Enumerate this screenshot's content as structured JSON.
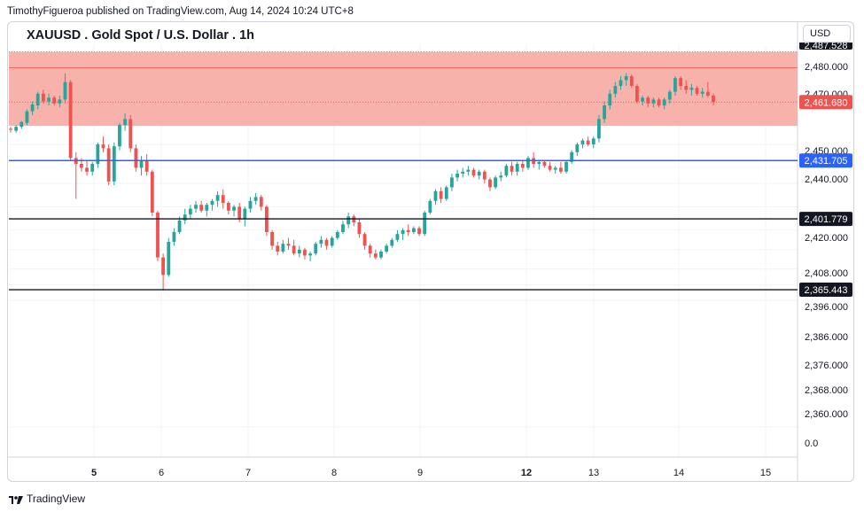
{
  "header": {
    "attribution": "TimothyFigueroa published on TradingView.com, Aug 14, 2024 10:24 UTC+8",
    "symbol_title": "XAUUSD . Gold Spot / U.S. Dollar . 1h",
    "currency": "USD"
  },
  "footer": {
    "brand": "TradingView"
  },
  "colors": {
    "up": "#26a69a",
    "down": "#ef5350",
    "zone_fill": "#f8b2ac",
    "zone_line": "#f06a61",
    "support_blue": "#2962ff",
    "support_black": "#131722",
    "grid": "#f0f3fa"
  },
  "chart_data": {
    "type": "candlestick",
    "title": "XAUUSD . Gold Spot / U.S. Dollar . 1h",
    "x_tick_labels": [
      "5",
      "6",
      "7",
      "8",
      "9",
      "12",
      "13",
      "14",
      "15"
    ],
    "bold_x_ticks": [
      "5",
      "12"
    ],
    "y_tick_labels": [
      "2,480.000",
      "2,470.000",
      "2,450.000",
      "2,440.000",
      "2,420.000",
      "2,408.000",
      "2,396.000",
      "2,386.000",
      "2,376.000",
      "2,368.000",
      "2,360.000",
      "0.0"
    ],
    "y_tick_values": [
      2480,
      2470,
      2450,
      2440,
      2420,
      2408,
      2396,
      2386,
      2376,
      2368,
      2360
    ],
    "grid": true,
    "resistance_zone": {
      "low": 2449.5,
      "high": 2487.5,
      "mid_line": 2479.3
    },
    "horizontal_levels": [
      {
        "label": "2,431.705",
        "value": 2431.705,
        "color": "blue"
      },
      {
        "label": "2,401.779",
        "value": 2401.779,
        "color": "black"
      },
      {
        "label": "2,365.443",
        "value": 2365.443,
        "color": "black"
      }
    ],
    "last_price": {
      "label": "2,461.680",
      "value": 2461.68
    },
    "top_price_label": "2,487.528",
    "candles": [
      [
        2448.0,
        2449.0,
        2446.0,
        2447.5
      ],
      [
        2447.0,
        2450.0,
        2446.0,
        2449.0
      ],
      [
        2449.0,
        2452.0,
        2448.0,
        2451.5
      ],
      [
        2451.0,
        2458.0,
        2450.0,
        2457.0
      ],
      [
        2457.0,
        2462.0,
        2455.0,
        2460.5
      ],
      [
        2460.0,
        2467.0,
        2458.0,
        2466.0
      ],
      [
        2466.0,
        2468.0,
        2461.0,
        2462.0
      ],
      [
        2462.0,
        2466.0,
        2460.0,
        2464.0
      ],
      [
        2464.0,
        2465.0,
        2460.0,
        2461.0
      ],
      [
        2461.0,
        2465.0,
        2459.0,
        2463.0
      ],
      [
        2463.0,
        2476.5,
        2461.0,
        2472.0
      ],
      [
        2472.0,
        2473.0,
        2432.0,
        2433.0
      ],
      [
        2433.0,
        2436.0,
        2412.0,
        2430.0
      ],
      [
        2430.0,
        2433.0,
        2426.0,
        2428.0
      ],
      [
        2428.0,
        2432.0,
        2424.0,
        2426.0
      ],
      [
        2426.0,
        2431.0,
        2424.0,
        2430.0
      ],
      [
        2430.0,
        2441.0,
        2428.0,
        2440.0
      ],
      [
        2440.0,
        2444.0,
        2436.0,
        2438.0
      ],
      [
        2438.0,
        2440.0,
        2419.0,
        2421.0
      ],
      [
        2421.0,
        2441.0,
        2419.0,
        2439.0
      ],
      [
        2439.0,
        2451.0,
        2437.0,
        2450.0
      ],
      [
        2450.0,
        2456.0,
        2447.0,
        2453.0
      ],
      [
        2453.0,
        2455.0,
        2436.0,
        2438.0
      ],
      [
        2438.0,
        2440.0,
        2426.0,
        2428.0
      ],
      [
        2428.0,
        2434.0,
        2424.0,
        2432.0
      ],
      [
        2432.0,
        2435.0,
        2424.0,
        2426.0
      ],
      [
        2426.0,
        2427.0,
        2403.0,
        2405.0
      ],
      [
        2405.0,
        2406.0,
        2380.0,
        2382.0
      ],
      [
        2382.0,
        2384.0,
        2365.0,
        2373.0
      ],
      [
        2373.0,
        2392.0,
        2372.0,
        2390.0
      ],
      [
        2390.0,
        2397.0,
        2388.0,
        2395.0
      ],
      [
        2395.0,
        2403.0,
        2394.0,
        2401.0
      ],
      [
        2401.0,
        2407.0,
        2399.0,
        2404.0
      ],
      [
        2404.0,
        2409.0,
        2402.0,
        2407.0
      ],
      [
        2407.0,
        2411.0,
        2405.0,
        2409.0
      ],
      [
        2409.0,
        2411.0,
        2405.0,
        2406.0
      ],
      [
        2406.0,
        2410.0,
        2403.0,
        2409.0
      ],
      [
        2409.0,
        2412.0,
        2406.0,
        2411.0
      ],
      [
        2411.0,
        2416.0,
        2408.0,
        2414.0
      ],
      [
        2414.0,
        2417.0,
        2407.0,
        2410.0
      ],
      [
        2410.0,
        2411.0,
        2404.0,
        2406.0
      ],
      [
        2406.0,
        2409.0,
        2403.0,
        2408.0
      ],
      [
        2408.0,
        2410.0,
        2400.0,
        2402.0
      ],
      [
        2402.0,
        2408.0,
        2398.0,
        2407.0
      ],
      [
        2407.0,
        2413.0,
        2405.0,
        2411.0
      ],
      [
        2411.0,
        2415.0,
        2409.0,
        2413.0
      ],
      [
        2413.0,
        2414.0,
        2406.0,
        2408.0
      ],
      [
        2408.0,
        2409.0,
        2393.0,
        2395.0
      ],
      [
        2395.0,
        2396.0,
        2386.0,
        2388.0
      ],
      [
        2388.0,
        2390.0,
        2383.0,
        2385.0
      ],
      [
        2385.0,
        2391.0,
        2384.0,
        2389.0
      ],
      [
        2389.0,
        2392.0,
        2386.0,
        2388.0
      ],
      [
        2388.0,
        2391.0,
        2383.0,
        2384.0
      ],
      [
        2384.0,
        2388.0,
        2382.0,
        2386.0
      ],
      [
        2386.0,
        2387.0,
        2381.0,
        2383.0
      ],
      [
        2383.0,
        2385.0,
        2380.0,
        2384.0
      ],
      [
        2384.0,
        2390.0,
        2383.0,
        2389.0
      ],
      [
        2389.0,
        2393.0,
        2387.0,
        2391.0
      ],
      [
        2391.0,
        2392.0,
        2386.0,
        2388.0
      ],
      [
        2388.0,
        2393.0,
        2387.0,
        2392.0
      ],
      [
        2392.0,
        2396.0,
        2391.0,
        2395.0
      ],
      [
        2395.0,
        2401.0,
        2394.0,
        2399.0
      ],
      [
        2399.0,
        2405.0,
        2397.0,
        2403.0
      ],
      [
        2403.0,
        2404.0,
        2398.0,
        2400.0
      ],
      [
        2400.0,
        2402.0,
        2392.0,
        2394.0
      ],
      [
        2394.0,
        2395.0,
        2386.0,
        2388.0
      ],
      [
        2388.0,
        2389.0,
        2382.0,
        2384.0
      ],
      [
        2384.0,
        2386.0,
        2381.0,
        2382.0
      ],
      [
        2382.0,
        2386.0,
        2381.0,
        2385.0
      ],
      [
        2385.0,
        2389.0,
        2384.0,
        2388.0
      ],
      [
        2388.0,
        2392.0,
        2387.0,
        2391.0
      ],
      [
        2391.0,
        2396.0,
        2390.0,
        2394.0
      ],
      [
        2394.0,
        2397.0,
        2391.0,
        2396.0
      ],
      [
        2396.0,
        2399.0,
        2393.0,
        2395.0
      ],
      [
        2395.0,
        2398.0,
        2394.0,
        2397.0
      ],
      [
        2397.0,
        2398.0,
        2393.0,
        2394.0
      ],
      [
        2394.0,
        2406.0,
        2393.0,
        2405.0
      ],
      [
        2405.0,
        2412.0,
        2404.0,
        2411.0
      ],
      [
        2411.0,
        2417.0,
        2409.0,
        2416.0
      ],
      [
        2416.0,
        2418.0,
        2410.0,
        2412.0
      ],
      [
        2412.0,
        2419.0,
        2411.0,
        2418.0
      ],
      [
        2418.0,
        2425.0,
        2416.0,
        2423.0
      ],
      [
        2423.0,
        2427.0,
        2421.0,
        2425.0
      ],
      [
        2425.0,
        2428.0,
        2423.0,
        2426.0
      ],
      [
        2426.0,
        2429.0,
        2424.0,
        2427.0
      ],
      [
        2427.0,
        2428.0,
        2423.0,
        2424.0
      ],
      [
        2424.0,
        2427.0,
        2422.0,
        2426.0
      ],
      [
        2426.0,
        2427.0,
        2420.0,
        2422.0
      ],
      [
        2422.0,
        2423.0,
        2416.0,
        2418.0
      ],
      [
        2418.0,
        2424.0,
        2417.0,
        2423.0
      ],
      [
        2423.0,
        2426.0,
        2421.0,
        2424.0
      ],
      [
        2424.0,
        2430.0,
        2423.0,
        2429.0
      ],
      [
        2429.0,
        2431.0,
        2424.0,
        2426.0
      ],
      [
        2426.0,
        2431.0,
        2424.0,
        2430.0
      ],
      [
        2430.0,
        2432.0,
        2426.0,
        2428.0
      ],
      [
        2428.0,
        2434.0,
        2427.0,
        2433.0
      ],
      [
        2433.0,
        2436.0,
        2428.0,
        2430.0
      ],
      [
        2430.0,
        2432.0,
        2427.0,
        2431.0
      ],
      [
        2431.0,
        2432.0,
        2428.0,
        2429.0
      ],
      [
        2429.0,
        2431.0,
        2426.0,
        2427.0
      ],
      [
        2427.0,
        2429.0,
        2425.0,
        2428.0
      ],
      [
        2428.0,
        2431.0,
        2425.0,
        2426.0
      ],
      [
        2426.0,
        2432.0,
        2425.0,
        2431.0
      ],
      [
        2431.0,
        2437.0,
        2430.0,
        2436.0
      ],
      [
        2436.0,
        2441.0,
        2434.0,
        2440.0
      ],
      [
        2440.0,
        2443.0,
        2438.0,
        2442.0
      ],
      [
        2442.0,
        2444.0,
        2439.0,
        2440.0
      ],
      [
        2440.0,
        2444.0,
        2438.0,
        2443.0
      ],
      [
        2443.0,
        2455.0,
        2441.0,
        2453.0
      ],
      [
        2453.0,
        2462.0,
        2451.0,
        2460.0
      ],
      [
        2460.0,
        2468.0,
        2458.0,
        2466.0
      ],
      [
        2466.0,
        2472.0,
        2464.0,
        2470.0
      ],
      [
        2470.0,
        2475.0,
        2468.0,
        2473.0
      ],
      [
        2473.0,
        2476.5,
        2470.0,
        2475.0
      ],
      [
        2475.0,
        2476.0,
        2469.0,
        2470.0
      ],
      [
        2470.0,
        2471.0,
        2461.0,
        2462.0
      ],
      [
        2462.0,
        2465.0,
        2460.0,
        2464.0
      ],
      [
        2464.0,
        2465.0,
        2459.0,
        2461.0
      ],
      [
        2461.0,
        2464.0,
        2459.0,
        2463.0
      ],
      [
        2463.0,
        2464.0,
        2459.0,
        2460.0
      ],
      [
        2460.0,
        2464.0,
        2458.0,
        2463.0
      ],
      [
        2463.0,
        2468.0,
        2461.0,
        2467.0
      ],
      [
        2467.0,
        2475.0,
        2465.0,
        2474.0
      ],
      [
        2474.0,
        2475.0,
        2468.0,
        2470.0
      ],
      [
        2470.0,
        2473.0,
        2466.0,
        2468.0
      ],
      [
        2468.0,
        2471.0,
        2465.0,
        2469.0
      ],
      [
        2469.0,
        2470.0,
        2465.0,
        2466.0
      ],
      [
        2466.0,
        2469.0,
        2464.0,
        2467.0
      ],
      [
        2467.0,
        2472.0,
        2464.0,
        2465.0
      ],
      [
        2465.0,
        2466.0,
        2460.0,
        2461.7
      ]
    ]
  }
}
